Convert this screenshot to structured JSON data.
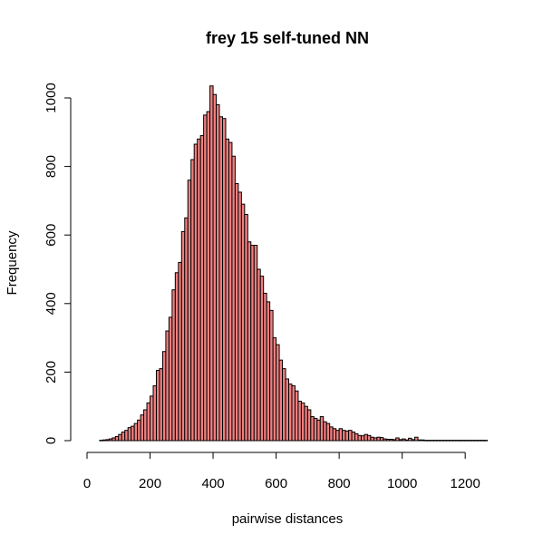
{
  "chart_data": {
    "type": "bar",
    "title": "frey 15 self-tuned NN",
    "xlabel": "pairwise distances",
    "ylabel": "Frequency",
    "bar_color": "#F08080",
    "bar_border_color": "#000000",
    "xlim": [
      0,
      1280
    ],
    "ylim": [
      0,
      1000
    ],
    "x_ticks": [
      0,
      200,
      400,
      600,
      800,
      1000,
      1200
    ],
    "y_ticks": [
      0,
      200,
      400,
      600,
      800,
      1000
    ],
    "bin_width": 10,
    "bin_start": 40,
    "values": [
      1,
      2,
      3,
      5,
      8,
      12,
      18,
      25,
      30,
      38,
      42,
      50,
      60,
      75,
      90,
      110,
      130,
      160,
      205,
      210,
      260,
      320,
      360,
      440,
      490,
      520,
      610,
      650,
      760,
      820,
      865,
      880,
      890,
      950,
      960,
      1035,
      1010,
      980,
      945,
      940,
      880,
      870,
      830,
      750,
      725,
      690,
      660,
      580,
      570,
      570,
      500,
      480,
      430,
      405,
      380,
      300,
      280,
      235,
      210,
      180,
      165,
      160,
      145,
      115,
      110,
      100,
      90,
      70,
      65,
      60,
      70,
      55,
      50,
      40,
      35,
      30,
      35,
      30,
      28,
      30,
      25,
      20,
      15,
      14,
      18,
      15,
      10,
      8,
      10,
      9,
      5,
      4,
      4,
      3,
      8,
      3,
      5,
      2,
      7,
      3,
      10,
      2,
      2,
      1,
      1,
      1,
      1,
      1,
      1,
      1,
      1,
      1,
      1,
      1,
      1,
      1,
      1,
      1,
      1,
      1,
      1,
      1,
      1
    ]
  }
}
